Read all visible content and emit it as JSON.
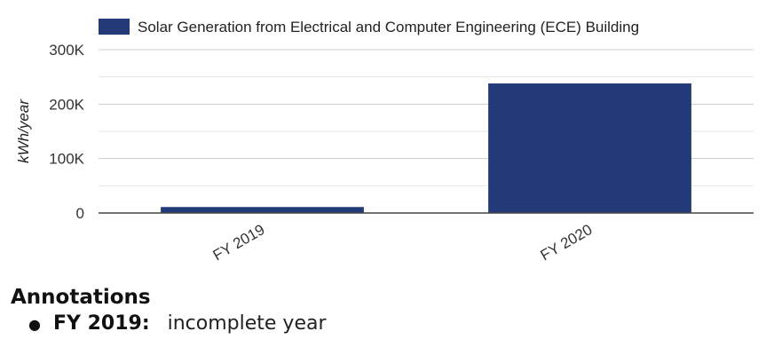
{
  "chart_data": {
    "type": "bar",
    "categories": [
      "FY 2019",
      "FY 2020"
    ],
    "series": [
      {
        "name": "Solar Generation from Electrical and Computer Engineering (ECE) Building",
        "values": [
          11000,
          238000
        ]
      }
    ],
    "ylabel": "kWh/year",
    "xlabel": "",
    "ylim": [
      0,
      300000
    ],
    "yticks": [
      0,
      100000,
      200000,
      300000
    ],
    "ytick_labels": [
      "0",
      "100K",
      "200K",
      "300K"
    ],
    "grid": true,
    "legend_position": "top",
    "colors": {
      "bar": "#233a78",
      "grid": "#cccccc",
      "axis": "#444444"
    }
  },
  "annotations": {
    "title": "Annotations",
    "items": [
      {
        "label": "FY 2019:",
        "text": "incomplete year"
      }
    ]
  }
}
